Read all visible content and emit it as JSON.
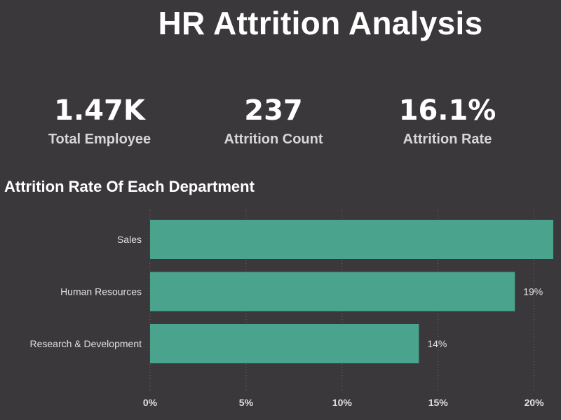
{
  "title": "HR Attrition Analysis",
  "kpis": [
    {
      "value": "1.47K",
      "label": "Total Employee"
    },
    {
      "value": "237",
      "label": "Attrition Count"
    },
    {
      "value": "16.1%",
      "label": "Attrition Rate"
    }
  ],
  "chart_data": {
    "type": "bar",
    "orientation": "horizontal",
    "title": "Attrition Rate Of Each Department",
    "categories": [
      "Sales",
      "Human Resources",
      "Research & Development"
    ],
    "values": [
      21,
      19,
      14
    ],
    "data_labels": [
      "",
      "19%",
      "14%"
    ],
    "xlim": [
      0,
      21
    ],
    "xticks": [
      0,
      5,
      10,
      15,
      20
    ],
    "xtick_labels": [
      "0%",
      "5%",
      "10%",
      "15%",
      "20%"
    ],
    "grid": "vertical dotted",
    "colors": {
      "bar": "#4aa38d",
      "grid": "#6b686b"
    }
  }
}
